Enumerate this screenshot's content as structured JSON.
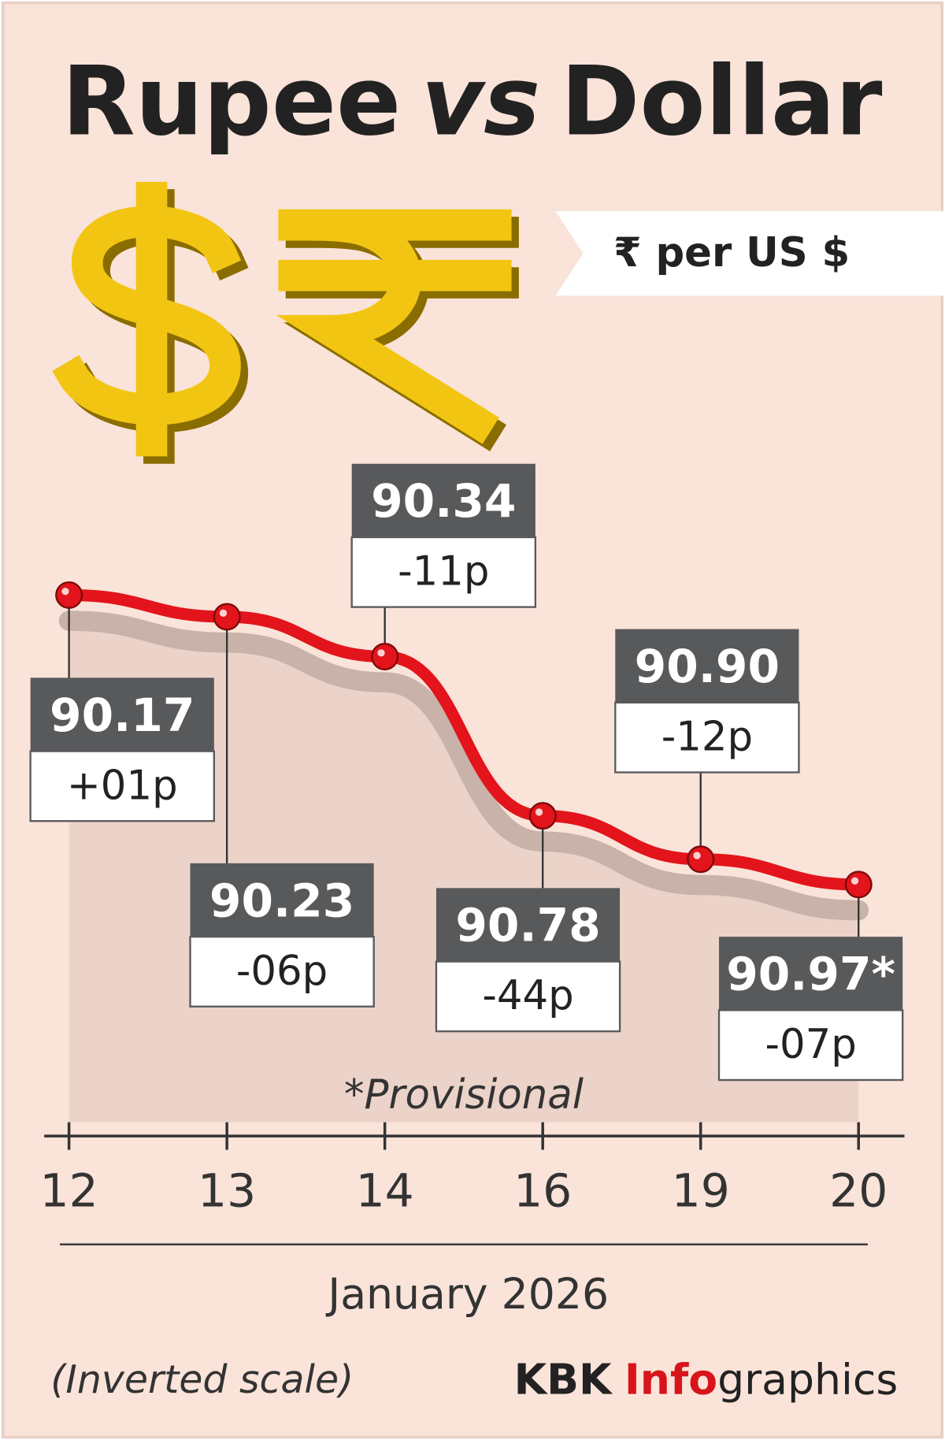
{
  "chart_data": {
    "type": "line",
    "title": [
      "Rupee",
      "vs",
      "Dollar"
    ],
    "unit": "₹ per US $",
    "categories": [
      "12",
      "13",
      "14",
      "16",
      "19",
      "20"
    ],
    "values": [
      90.17,
      90.23,
      90.34,
      90.78,
      90.9,
      90.97
    ],
    "value_labels": [
      "90.17",
      "90.23",
      "90.34",
      "90.78",
      "90.90",
      "90.97*"
    ],
    "change_labels": [
      "+01p",
      "-06p",
      "-11p",
      "-44p",
      "-12p",
      "-07p"
    ],
    "color": "#e3141b",
    "ylim": [
      90,
      91.67
    ],
    "inverted": true,
    "note": "*Provisional",
    "x_label": "January 2026",
    "scale_note": "(Inverted scale)",
    "credit": {
      "name": "KBK",
      "highlight": "Info",
      "rest": "graphics"
    }
  }
}
